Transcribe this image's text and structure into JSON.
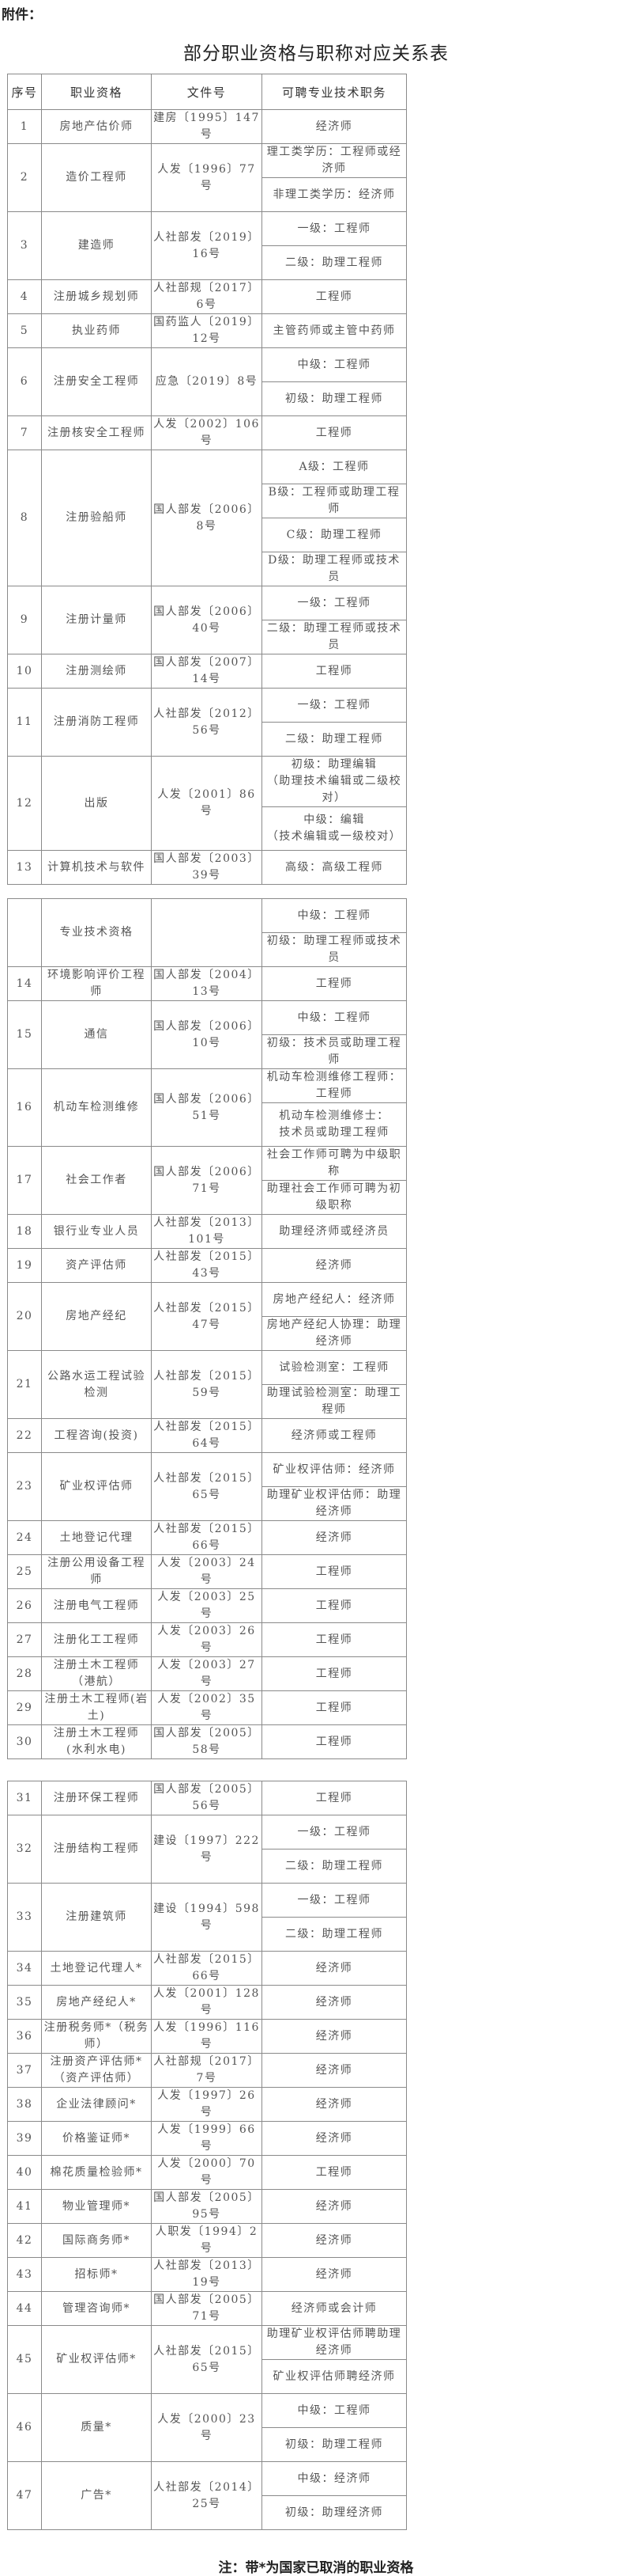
{
  "attachment_label": "附件：",
  "title": "部分职业资格与职称对应关系表",
  "header": [
    "序号",
    "职业资格",
    "文件号",
    "可聘专业技术职务"
  ],
  "tables": [
    {
      "rows": [
        {
          "no": "1",
          "name": "房地产估价师",
          "doc": "建房〔1995〕147号",
          "posts": [
            "经济师"
          ]
        },
        {
          "no": "2",
          "name": "造价工程师",
          "doc": "人发〔1996〕77号",
          "posts": [
            "理工类学历：工程师或经济师",
            "非理工类学历：经济师"
          ]
        },
        {
          "no": "3",
          "name": "建造师",
          "doc": "人社部发〔2019〕16号",
          "posts": [
            "一级：工程师",
            "二级：助理工程师"
          ]
        },
        {
          "no": "4",
          "name": "注册城乡规划师",
          "doc": "人社部规〔2017〕6号",
          "posts": [
            "工程师"
          ]
        },
        {
          "no": "5",
          "name": "执业药师",
          "doc": "国药监人〔2019〕12号",
          "posts": [
            "主管药师或主管中药师"
          ]
        },
        {
          "no": "6",
          "name": "注册安全工程师",
          "doc": "应急〔2019〕8号",
          "posts": [
            "中级：工程师",
            "初级：助理工程师"
          ]
        },
        {
          "no": "7",
          "name": "注册核安全工程师",
          "doc": "人发〔2002〕106号",
          "posts": [
            "工程师"
          ]
        },
        {
          "no": "8",
          "name": "注册验船师",
          "doc": "国人部发〔2006〕8号",
          "posts": [
            "A级：工程师",
            "B级：工程师或助理工程师",
            "C级：助理工程师",
            "D级：助理工程师或技术员"
          ]
        },
        {
          "no": "9",
          "name": "注册计量师",
          "doc": "国人部发〔2006〕40号",
          "posts": [
            "一级：工程师",
            "二级：助理工程师或技术员"
          ]
        },
        {
          "no": "10",
          "name": "注册测绘师",
          "doc": "国人部发〔2007〕14号",
          "posts": [
            "工程师"
          ]
        },
        {
          "no": "11",
          "name": "注册消防工程师",
          "doc": "人社部发〔2012〕56号",
          "posts": [
            "一级：工程师",
            "二级：助理工程师"
          ]
        },
        {
          "no": "12",
          "name": "出版",
          "doc": "人发〔2001〕86号",
          "posts": [
            "初级：助理编辑\n（助理技术编辑或二级校对）",
            "中级：编辑\n（技术编辑或一级校对）"
          ]
        },
        {
          "no": "13",
          "name": "计算机技术与软件",
          "doc": "国人部发〔2003〕39号",
          "posts": [
            "高级：高级工程师"
          ]
        }
      ]
    },
    {
      "rows": [
        {
          "no": "",
          "name": "专业技术资格",
          "doc": "",
          "posts": [
            "中级：工程师",
            "初级：助理工程师或技术员"
          ]
        },
        {
          "no": "14",
          "name": "环境影响评价工程师",
          "doc": "国人部发〔2004〕13号",
          "posts": [
            "工程师"
          ]
        },
        {
          "no": "15",
          "name": "通信",
          "doc": "国人部发〔2006〕10号",
          "posts": [
            "中级：工程师",
            "初级：技术员或助理工程师"
          ]
        },
        {
          "no": "16",
          "name": "机动车检测维修",
          "doc": "国人部发〔2006〕51号",
          "posts": [
            "机动车检测维修工程师：工程师",
            "机动车检测维修士：\n技术员或助理工程师"
          ]
        },
        {
          "no": "17",
          "name": "社会工作者",
          "doc": "国人部发〔2006〕71号",
          "posts": [
            "社会工作师可聘为中级职称",
            "助理社会工作师可聘为初级职称"
          ]
        },
        {
          "no": "18",
          "name": "银行业专业人员",
          "doc": "人社部发〔2013〕101号",
          "posts": [
            "助理经济师或经济员"
          ]
        },
        {
          "no": "19",
          "name": "资产评估师",
          "doc": "人社部发〔2015〕43号",
          "posts": [
            "经济师"
          ]
        },
        {
          "no": "20",
          "name": "房地产经纪",
          "doc": "人社部发〔2015〕47号",
          "posts": [
            "房地产经纪人：经济师",
            "房地产经纪人协理：助理经济师"
          ]
        },
        {
          "no": "21",
          "name": "公路水运工程试验检测",
          "doc": "人社部发〔2015〕59号",
          "posts": [
            "试验检测室：工程师",
            "助理试验检测室：助理工程师"
          ]
        },
        {
          "no": "22",
          "name": "工程咨询(投资)",
          "doc": "人社部发〔2015〕64号",
          "posts": [
            "经济师或工程师"
          ]
        },
        {
          "no": "23",
          "name": "矿业权评估师",
          "doc": "人社部发〔2015〕65号",
          "posts": [
            "矿业权评估师：经济师",
            "助理矿业权评估师：助理经济师"
          ]
        },
        {
          "no": "24",
          "name": "土地登记代理",
          "doc": "人社部发〔2015〕66号",
          "posts": [
            "经济师"
          ]
        },
        {
          "no": "25",
          "name": "注册公用设备工程师",
          "doc": "人发〔2003〕24号",
          "posts": [
            "工程师"
          ]
        },
        {
          "no": "26",
          "name": "注册电气工程师",
          "doc": "人发〔2003〕25号",
          "posts": [
            "工程师"
          ]
        },
        {
          "no": "27",
          "name": "注册化工工程师",
          "doc": "人发〔2003〕26号",
          "posts": [
            "工程师"
          ]
        },
        {
          "no": "28",
          "name": "注册土木工程师（港航）",
          "doc": "人发〔2003〕27号",
          "posts": [
            "工程师"
          ]
        },
        {
          "no": "29",
          "name": "注册土木工程师(岩土)",
          "doc": "人发〔2002〕35号",
          "posts": [
            "工程师"
          ]
        },
        {
          "no": "30",
          "name": "注册土木工程师\n(水利水电)",
          "doc": "国人部发〔2005〕58号",
          "posts": [
            "工程师"
          ]
        }
      ]
    },
    {
      "rows": [
        {
          "no": "31",
          "name": "注册环保工程师",
          "doc": "国人部发〔2005〕56号",
          "posts": [
            "工程师"
          ]
        },
        {
          "no": "32",
          "name": "注册结构工程师",
          "doc": "建设〔1997〕222号",
          "posts": [
            "一级：工程师",
            "二级：助理工程师"
          ]
        },
        {
          "no": "33",
          "name": "注册建筑师",
          "doc": "建设〔1994〕598号",
          "posts": [
            "一级：工程师",
            "二级：助理工程师"
          ]
        },
        {
          "no": "34",
          "name": "土地登记代理人*",
          "doc": "人社部发〔2015〕66号",
          "posts": [
            "经济师"
          ]
        },
        {
          "no": "35",
          "name": "房地产经纪人*",
          "doc": "人发〔2001〕128号",
          "posts": [
            "经济师"
          ]
        },
        {
          "no": "36",
          "name": "注册税务师*（税务师）",
          "doc": "人发〔1996〕116号",
          "posts": [
            "经济师"
          ]
        },
        {
          "no": "37",
          "name": "注册资产评估师*\n（资产评估师）",
          "doc": "人社部规〔2017〕7号",
          "posts": [
            "经济师"
          ]
        },
        {
          "no": "38",
          "name": "企业法律顾问*",
          "doc": "人发〔1997〕26号",
          "posts": [
            "经济师"
          ]
        },
        {
          "no": "39",
          "name": "价格鉴证师*",
          "doc": "人发〔1999〕66号",
          "posts": [
            "经济师"
          ]
        },
        {
          "no": "40",
          "name": "棉花质量检验师*",
          "doc": "人发〔2000〕70号",
          "posts": [
            "工程师"
          ]
        },
        {
          "no": "41",
          "name": "物业管理师*",
          "doc": "国人部发〔2005〕95号",
          "posts": [
            "经济师"
          ]
        },
        {
          "no": "42",
          "name": "国际商务师*",
          "doc": "人职发〔1994〕2号",
          "posts": [
            "经济师"
          ]
        },
        {
          "no": "43",
          "name": "招标师*",
          "doc": "人社部发〔2013〕19号",
          "posts": [
            "经济师"
          ]
        },
        {
          "no": "44",
          "name": "管理咨询师*",
          "doc": "国人部发〔2005〕71号",
          "posts": [
            "经济师或会计师"
          ]
        },
        {
          "no": "45",
          "name": "矿业权评估师*",
          "doc": "人社部发〔2015〕65号",
          "posts": [
            "助理矿业权评估师聘助理经济师",
            "矿业权评估师聘经济师"
          ]
        },
        {
          "no": "46",
          "name": "质量*",
          "doc": "人发〔2000〕23号",
          "posts": [
            "中级：工程师",
            "初级：助理工程师"
          ]
        },
        {
          "no": "47",
          "name": "广告*",
          "doc": "人社部发〔2014〕25号",
          "posts": [
            "中级：经济师",
            "初级：助理经济师"
          ]
        }
      ]
    }
  ],
  "note": "注：带*为国家已取消的职业资格"
}
